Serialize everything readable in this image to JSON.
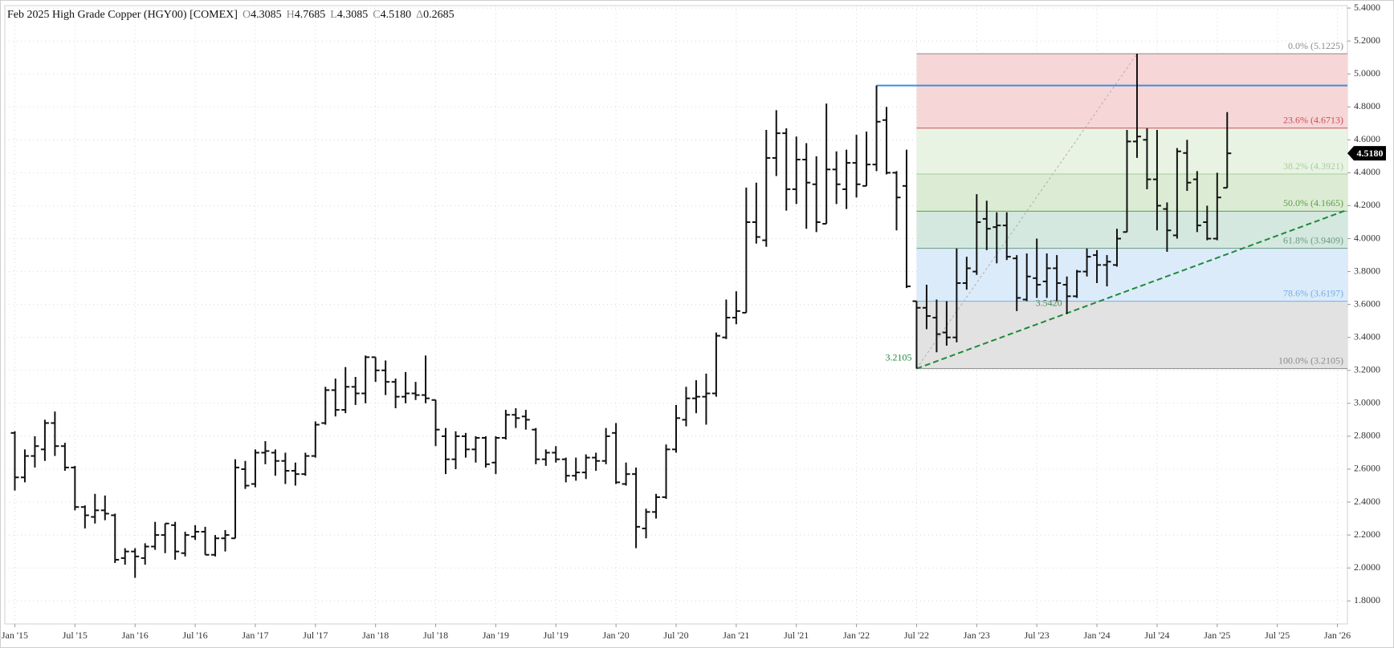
{
  "chart_data": {
    "type": "ohlc",
    "title": "Feb 2025 High Grade Copper (HGY00) [COMEX]",
    "stats": [
      {
        "key": "O",
        "value": "4.3085"
      },
      {
        "key": "H",
        "value": "4.7685"
      },
      {
        "key": "L",
        "value": "4.3085"
      },
      {
        "key": "C",
        "value": "4.5180"
      },
      {
        "key": "Δ",
        "value": "0.2685"
      }
    ],
    "x": [
      "2015-01",
      "2015-02",
      "2015-03",
      "2015-04",
      "2015-05",
      "2015-06",
      "2015-07",
      "2015-08",
      "2015-09",
      "2015-10",
      "2015-11",
      "2015-12",
      "2016-01",
      "2016-02",
      "2016-03",
      "2016-04",
      "2016-05",
      "2016-06",
      "2016-07",
      "2016-08",
      "2016-09",
      "2016-10",
      "2016-11",
      "2016-12",
      "2017-01",
      "2017-02",
      "2017-03",
      "2017-04",
      "2017-05",
      "2017-06",
      "2017-07",
      "2017-08",
      "2017-09",
      "2017-10",
      "2017-11",
      "2017-12",
      "2018-01",
      "2018-02",
      "2018-03",
      "2018-04",
      "2018-05",
      "2018-06",
      "2018-07",
      "2018-08",
      "2018-09",
      "2018-10",
      "2018-11",
      "2018-12",
      "2019-01",
      "2019-02",
      "2019-03",
      "2019-04",
      "2019-05",
      "2019-06",
      "2019-07",
      "2019-08",
      "2019-09",
      "2019-10",
      "2019-11",
      "2019-12",
      "2020-01",
      "2020-02",
      "2020-03",
      "2020-04",
      "2020-05",
      "2020-06",
      "2020-07",
      "2020-08",
      "2020-09",
      "2020-10",
      "2020-11",
      "2020-12",
      "2021-01",
      "2021-02",
      "2021-03",
      "2021-04",
      "2021-05",
      "2021-06",
      "2021-07",
      "2021-08",
      "2021-09",
      "2021-10",
      "2021-11",
      "2021-12",
      "2022-01",
      "2022-02",
      "2022-03",
      "2022-04",
      "2022-05",
      "2022-06",
      "2022-07",
      "2022-08",
      "2022-09",
      "2022-10",
      "2022-11",
      "2022-12",
      "2023-01",
      "2023-02",
      "2023-03",
      "2023-04",
      "2023-05",
      "2023-06",
      "2023-07",
      "2023-08",
      "2023-09",
      "2023-10",
      "2023-11",
      "2023-12",
      "2024-01",
      "2024-02",
      "2024-03",
      "2024-04",
      "2024-05",
      "2024-06",
      "2024-07",
      "2024-08",
      "2024-09",
      "2024-10",
      "2024-11",
      "2024-12",
      "2025-01",
      "2025-02"
    ],
    "open": [
      2.82,
      2.55,
      2.68,
      2.72,
      2.88,
      2.74,
      2.61,
      2.37,
      2.31,
      2.35,
      2.32,
      2.06,
      2.1,
      2.06,
      2.13,
      2.2,
      2.26,
      2.09,
      2.19,
      2.22,
      2.08,
      2.18,
      2.18,
      2.6,
      2.51,
      2.7,
      2.7,
      2.65,
      2.59,
      2.57,
      2.68,
      2.88,
      3.08,
      2.96,
      3.1,
      3.06,
      3.28,
      3.2,
      3.13,
      3.04,
      3.06,
      3.05,
      3.02,
      2.8,
      2.66,
      2.8,
      2.72,
      2.79,
      2.64,
      2.79,
      2.93,
      2.92,
      2.84,
      2.66,
      2.7,
      2.66,
      2.56,
      2.58,
      2.67,
      2.65,
      2.82,
      2.51,
      2.57,
      2.24,
      2.34,
      2.43,
      2.72,
      2.9,
      3.03,
      3.04,
      3.06,
      3.4,
      3.52,
      3.55,
      4.1,
      3.99,
      4.49,
      4.64,
      4.3,
      4.48,
      4.33,
      4.09,
      4.42,
      4.3,
      4.46,
      4.32,
      4.45,
      4.72,
      4.4,
      4.32,
      3.62,
      3.58,
      3.52,
      3.43,
      3.4,
      3.73,
      3.8,
      4.12,
      4.07,
      4.08,
      3.88,
      3.63,
      3.76,
      3.74,
      3.82,
      3.72,
      3.65,
      3.8,
      3.9,
      3.84,
      3.84,
      4.04,
      4.59,
      4.6,
      4.36,
      4.18,
      4.02,
      4.52,
      4.36,
      4.1,
      4.0,
      4.3085
    ],
    "high": [
      2.83,
      2.72,
      2.8,
      2.9,
      2.95,
      2.76,
      2.62,
      2.38,
      2.45,
      2.44,
      2.33,
      2.12,
      2.12,
      2.15,
      2.28,
      2.27,
      2.28,
      2.22,
      2.26,
      2.25,
      2.2,
      2.23,
      2.66,
      2.65,
      2.72,
      2.77,
      2.72,
      2.7,
      2.64,
      2.7,
      2.89,
      3.1,
      3.15,
      3.22,
      3.16,
      3.29,
      3.28,
      3.26,
      3.15,
      3.19,
      3.13,
      3.29,
      3.02,
      2.85,
      2.83,
      2.82,
      2.8,
      2.8,
      2.8,
      2.96,
      2.97,
      2.96,
      2.85,
      2.72,
      2.74,
      2.67,
      2.67,
      2.69,
      2.7,
      2.85,
      2.88,
      2.64,
      2.61,
      2.36,
      2.45,
      2.75,
      2.99,
      3.1,
      3.14,
      3.18,
      3.43,
      3.63,
      3.68,
      4.31,
      4.34,
      4.66,
      4.78,
      4.67,
      4.62,
      4.58,
      4.5,
      4.82,
      4.53,
      4.54,
      4.63,
      4.65,
      4.93,
      4.8,
      4.41,
      4.54,
      3.62,
      3.72,
      3.63,
      3.62,
      3.94,
      3.89,
      4.27,
      4.23,
      4.16,
      4.16,
      3.9,
      3.91,
      4.0,
      3.91,
      3.9,
      3.77,
      3.81,
      3.94,
      3.93,
      3.9,
      4.06,
      4.66,
      5.1225,
      4.67,
      4.66,
      4.22,
      4.55,
      4.6,
      4.41,
      4.2,
      4.4,
      4.7685
    ],
    "low": [
      2.47,
      2.52,
      2.61,
      2.65,
      2.68,
      2.59,
      2.35,
      2.24,
      2.27,
      2.29,
      2.03,
      2.02,
      1.94,
      2.02,
      2.11,
      2.09,
      2.05,
      2.07,
      2.17,
      2.08,
      2.07,
      2.1,
      2.18,
      2.48,
      2.49,
      2.63,
      2.56,
      2.51,
      2.5,
      2.56,
      2.67,
      2.87,
      2.92,
      2.94,
      2.99,
      3.0,
      3.13,
      3.05,
      2.97,
      3.0,
      3.02,
      3.0,
      2.74,
      2.57,
      2.6,
      2.67,
      2.64,
      2.61,
      2.57,
      2.78,
      2.85,
      2.84,
      2.63,
      2.62,
      2.64,
      2.52,
      2.53,
      2.54,
      2.59,
      2.63,
      2.51,
      2.5,
      2.12,
      2.18,
      2.3,
      2.42,
      2.7,
      2.86,
      2.94,
      2.87,
      3.04,
      3.39,
      3.48,
      3.55,
      3.97,
      3.95,
      4.38,
      4.17,
      4.21,
      4.06,
      4.04,
      4.09,
      4.21,
      4.18,
      4.25,
      4.32,
      4.41,
      4.39,
      4.05,
      3.7,
      3.2105,
      3.45,
      3.31,
      3.35,
      3.37,
      3.69,
      3.78,
      3.93,
      3.85,
      3.87,
      3.56,
      3.62,
      3.64,
      3.64,
      3.62,
      3.542,
      3.64,
      3.77,
      3.73,
      3.71,
      3.83,
      4.04,
      4.49,
      4.3,
      4.05,
      3.92,
      4.0,
      4.29,
      4.04,
      3.99,
      3.99,
      4.3085
    ],
    "close": [
      2.55,
      2.68,
      2.74,
      2.88,
      2.74,
      2.61,
      2.37,
      2.32,
      2.35,
      2.33,
      2.05,
      2.1,
      2.07,
      2.13,
      2.2,
      2.27,
      2.1,
      2.2,
      2.22,
      2.08,
      2.18,
      2.2,
      2.61,
      2.5,
      2.7,
      2.71,
      2.65,
      2.59,
      2.57,
      2.68,
      2.87,
      3.08,
      2.96,
      3.1,
      3.06,
      3.28,
      3.2,
      3.13,
      3.04,
      3.06,
      3.05,
      3.03,
      2.84,
      2.66,
      2.8,
      2.72,
      2.79,
      2.63,
      2.79,
      2.93,
      2.91,
      2.9,
      2.66,
      2.7,
      2.66,
      2.56,
      2.58,
      2.67,
      2.65,
      2.8,
      2.52,
      2.57,
      2.25,
      2.34,
      2.43,
      2.72,
      2.91,
      3.03,
      3.04,
      3.06,
      3.41,
      3.52,
      3.56,
      4.1,
      4.01,
      4.49,
      4.64,
      4.3,
      4.48,
      4.34,
      4.1,
      4.42,
      4.33,
      4.46,
      4.33,
      4.45,
      4.71,
      4.4,
      4.25,
      3.71,
      3.58,
      3.53,
      3.42,
      3.4,
      3.73,
      3.82,
      4.1,
      4.06,
      4.08,
      3.89,
      3.64,
      3.77,
      3.72,
      3.82,
      3.73,
      3.65,
      3.8,
      3.89,
      3.84,
      3.86,
      4.0,
      4.59,
      4.62,
      4.36,
      4.2,
      4.05,
      4.53,
      4.34,
      4.08,
      4.0,
      4.25,
      4.518
    ],
    "color": "#111111",
    "xlim": [
      "2014-12",
      "2026-02"
    ],
    "xticks": [
      {
        "value": "2015-01",
        "label": "Jan '15"
      },
      {
        "value": "2015-07",
        "label": "Jul '15"
      },
      {
        "value": "2016-01",
        "label": "Jan '16"
      },
      {
        "value": "2016-07",
        "label": "Jul '16"
      },
      {
        "value": "2017-01",
        "label": "Jan '17"
      },
      {
        "value": "2017-07",
        "label": "Jul '17"
      },
      {
        "value": "2018-01",
        "label": "Jan '18"
      },
      {
        "value": "2018-07",
        "label": "Jul '18"
      },
      {
        "value": "2019-01",
        "label": "Jan '19"
      },
      {
        "value": "2019-07",
        "label": "Jul '19"
      },
      {
        "value": "2020-01",
        "label": "Jan '20"
      },
      {
        "value": "2020-07",
        "label": "Jul '20"
      },
      {
        "value": "2021-01",
        "label": "Jan '21"
      },
      {
        "value": "2021-07",
        "label": "Jul '21"
      },
      {
        "value": "2022-01",
        "label": "Jan '22"
      },
      {
        "value": "2022-07",
        "label": "Jul '22"
      },
      {
        "value": "2023-01",
        "label": "Jan '23"
      },
      {
        "value": "2023-07",
        "label": "Jul '23"
      },
      {
        "value": "2024-01",
        "label": "Jan '24"
      },
      {
        "value": "2024-07",
        "label": "Jul '24"
      },
      {
        "value": "2025-01",
        "label": "Jan '25"
      },
      {
        "value": "2025-07",
        "label": "Jul '25"
      },
      {
        "value": "2026-01",
        "label": "Jan '26"
      }
    ],
    "ylim": [
      1.66,
      5.415
    ],
    "yticks": [
      {
        "value": 1.8,
        "label": "1.8000"
      },
      {
        "value": 2.0,
        "label": "2.0000"
      },
      {
        "value": 2.2,
        "label": "2.2000"
      },
      {
        "value": 2.4,
        "label": "2.4000"
      },
      {
        "value": 2.6,
        "label": "2.6000"
      },
      {
        "value": 2.8,
        "label": "2.8000"
      },
      {
        "value": 3.0,
        "label": "3.0000"
      },
      {
        "value": 3.2,
        "label": "3.2000"
      },
      {
        "value": 3.4,
        "label": "3.4000"
      },
      {
        "value": 3.6,
        "label": "3.6000"
      },
      {
        "value": 3.8,
        "label": "3.8000"
      },
      {
        "value": 4.0,
        "label": "4.0000"
      },
      {
        "value": 4.2,
        "label": "4.2000"
      },
      {
        "value": 4.4,
        "label": "4.4000"
      },
      {
        "value": 4.6,
        "label": "4.6000"
      },
      {
        "value": 4.8,
        "label": "4.8000"
      },
      {
        "value": 5.0,
        "label": "5.0000"
      },
      {
        "value": 5.2,
        "label": "5.2000"
      },
      {
        "value": 5.4,
        "label": "5.4000"
      }
    ],
    "grid": true,
    "fib": {
      "start": "2022-07",
      "levels": [
        {
          "value": 5.1225,
          "label": "0.0% (5.1225)",
          "color": "#8a8a8a"
        },
        {
          "value": 4.6713,
          "label": "23.6% (4.6713)",
          "color": "#c9505c"
        },
        {
          "value": 4.3921,
          "label": "38.2% (4.3921)",
          "color": "#a9cc9e"
        },
        {
          "value": 4.1665,
          "label": "50.0% (4.1665)",
          "color": "#5f9c4c"
        },
        {
          "value": 3.9409,
          "label": "61.8% (3.9409)",
          "color": "#6b9a84"
        },
        {
          "value": 3.6197,
          "label": "78.6% (3.6197)",
          "color": "#74aee2"
        },
        {
          "value": 3.2105,
          "label": "100.0% (3.2105)",
          "color": "#8a8a8a"
        }
      ],
      "zone_colors": [
        "#f7d6d7",
        "#e8f3e3",
        "#dcecd4",
        "#d4e8df",
        "#dcebfa",
        "#e2e2e2"
      ]
    },
    "trendline": {
      "x": [
        "2022-07",
        "2026-02"
      ],
      "y": [
        3.2105,
        4.175
      ],
      "color": "#1e8a3a"
    },
    "fib_line": {
      "x": [
        "2022-07",
        "2024-05"
      ],
      "y": [
        3.2105,
        5.1225
      ],
      "color": "#b0b0b0"
    },
    "resistance": {
      "x": [
        "2022-03",
        "2026-02"
      ],
      "y": [
        4.93,
        4.93
      ],
      "color": "#3a8fe0"
    },
    "annotations": [
      {
        "label": "3.2105",
        "value": 3.2105,
        "x": "2022-07",
        "color": "#1e8a3a"
      },
      {
        "label": "3.5420",
        "value": 3.542,
        "x": "2023-10",
        "color": "#4f8a5a"
      }
    ],
    "last_price": {
      "value": 4.518,
      "label": "4.5180"
    }
  }
}
